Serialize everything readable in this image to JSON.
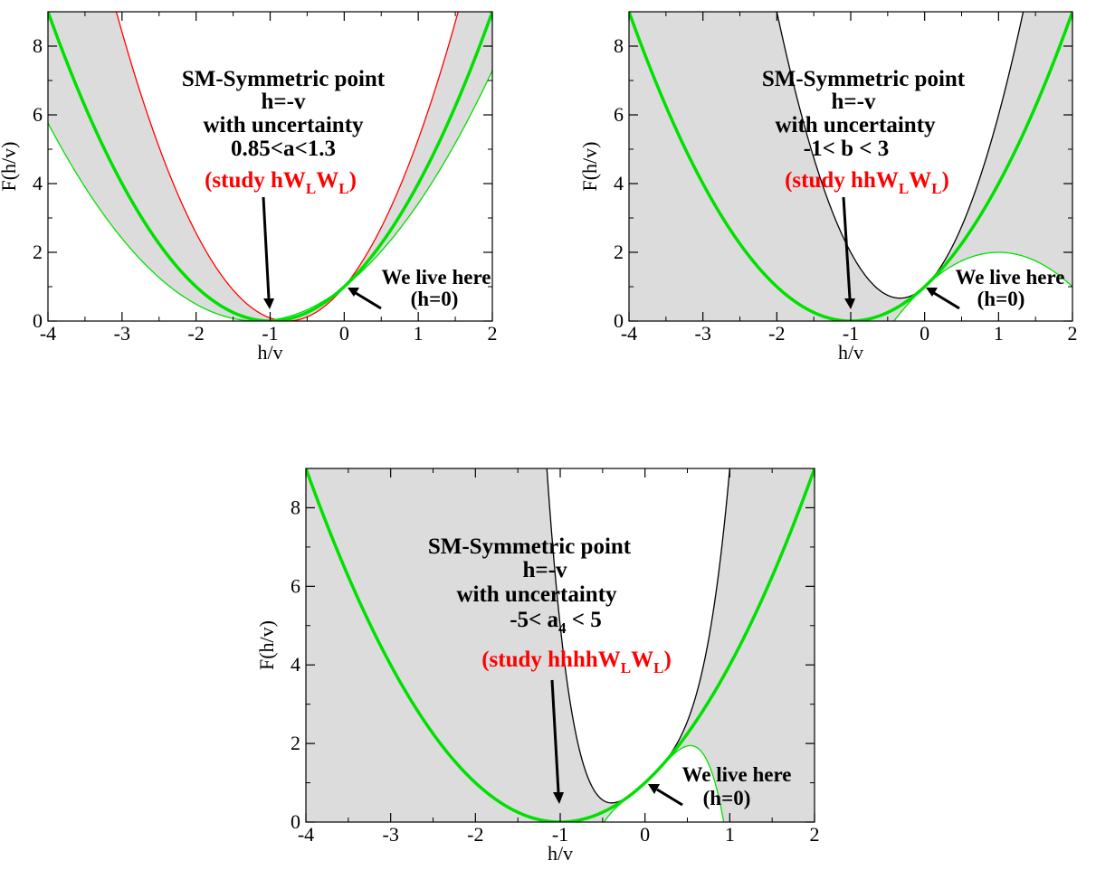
{
  "chart_data": [
    {
      "type": "line",
      "xlabel": "h/v",
      "ylabel": "F(h/v)",
      "xlim": [
        -4,
        2
      ],
      "ylim": [
        0,
        9
      ],
      "xticks": [
        "-4",
        "-3",
        "-2",
        "-1",
        "0",
        "1",
        "2"
      ],
      "yticks": [
        "0",
        "2",
        "4",
        "6",
        "8"
      ],
      "grid": false,
      "series": [
        {
          "role": "sm",
          "color": "#00e000",
          "a": 1,
          "b": 1,
          "a4": 0
        },
        {
          "role": "band-edge-upper",
          "color": "#ff0000",
          "a": 1.3,
          "b": 1.69,
          "a4": 0
        },
        {
          "role": "band-edge-lower",
          "color": "#00e000",
          "a": 0.85,
          "b": 0.7225,
          "a4": 0
        }
      ],
      "shade_between": [
        1,
        2
      ],
      "shade_color": "#dcdcdc",
      "annotations": {
        "title_lines": [
          "SM-Symmetric point",
          "h=-v",
          "with uncertainty",
          "0.85<a<1.3"
        ],
        "study": {
          "prefix": "(study hW",
          "sub1": "L",
          "mid": "W",
          "sub2": "L",
          "suffix": ")"
        },
        "here_lines": [
          "We live here",
          "(h=0)"
        ],
        "study_color": "#ff0000"
      }
    },
    {
      "type": "line",
      "xlabel": "h/v",
      "ylabel": "F(h/v)",
      "xlim": [
        -4,
        2
      ],
      "ylim": [
        0,
        9
      ],
      "xticks": [
        "-4",
        "-3",
        "-2",
        "-1",
        "0",
        "1",
        "2"
      ],
      "yticks": [
        "0",
        "2",
        "4",
        "6",
        "8"
      ],
      "grid": false,
      "series": [
        {
          "role": "sm",
          "color": "#00e000",
          "a": 1,
          "b": 1,
          "a4": 0
        },
        {
          "role": "band-edge-upper",
          "color": "#000000",
          "a": 1,
          "b": 3,
          "a4": 0
        },
        {
          "role": "band-edge-lower",
          "color": "#00e000",
          "a": 1,
          "b": -1,
          "a4": 0
        }
      ],
      "shade_between": [
        1,
        2
      ],
      "shade_color": "#dcdcdc",
      "annotations": {
        "title_lines": [
          "SM-Symmetric point",
          "h=-v",
          "with uncertainty",
          "-1< b < 3"
        ],
        "study": {
          "prefix": "(study hhW",
          "sub1": "L",
          "mid": "W",
          "sub2": "L",
          "suffix": ")"
        },
        "here_lines": [
          "We live here",
          "(h=0)"
        ],
        "study_color": "#ff0000"
      }
    },
    {
      "type": "line",
      "xlabel": "h/v",
      "ylabel": "F(h/v)",
      "xlim": [
        -4,
        2
      ],
      "ylim": [
        0,
        9
      ],
      "xticks": [
        "-4",
        "-3",
        "-2",
        "-1",
        "0",
        "1",
        "2"
      ],
      "yticks": [
        "0",
        "2",
        "4",
        "6",
        "8"
      ],
      "grid": false,
      "series": [
        {
          "role": "sm",
          "color": "#00e000",
          "a": 1,
          "b": 1,
          "a4": 0
        },
        {
          "role": "band-edge-upper",
          "color": "#000000",
          "a": 1,
          "b": 1,
          "a4": 5
        },
        {
          "role": "band-edge-lower",
          "color": "#00e000",
          "a": 1,
          "b": 1,
          "a4": -5
        }
      ],
      "shade_between": [
        1,
        2
      ],
      "shade_color": "#dcdcdc",
      "annotations": {
        "title_lines": [
          "SM-Symmetric point",
          "h=-v",
          "with uncertainty"
        ],
        "range": {
          "prefix": "-5< a",
          "sub": "4",
          "suffix": " < 5"
        },
        "study": {
          "prefix": "(study hhhhW",
          "sub1": "L",
          "mid": "W",
          "sub2": "L",
          "suffix": ")"
        },
        "here_lines": [
          "We live here",
          "(h=0)"
        ],
        "study_color": "#ff0000"
      }
    }
  ]
}
